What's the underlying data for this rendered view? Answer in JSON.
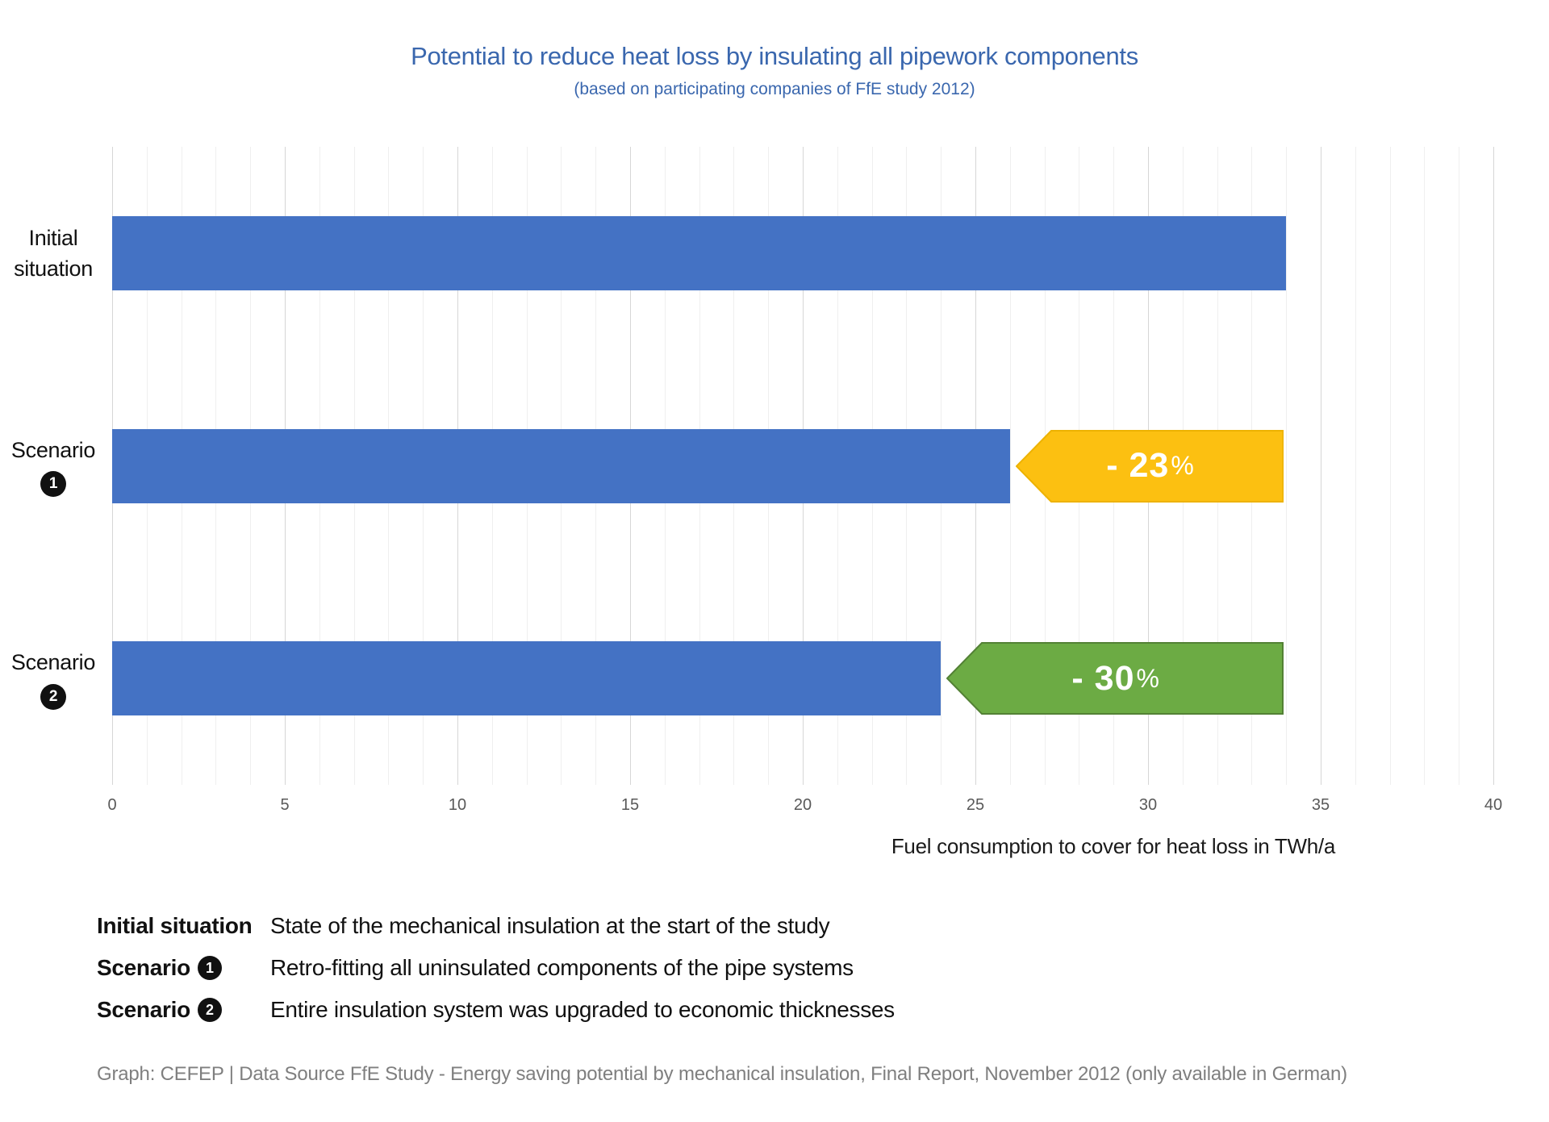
{
  "title": "Potential to reduce heat loss by insulating all pipework components",
  "subtitle": "(based on participating companies of FfE study 2012)",
  "colors": {
    "title_text": "#3A67AE",
    "bar_blue": "#4472C4",
    "arrow_yellow_fill": "#FCC011",
    "arrow_yellow_stroke": "#EDB200",
    "arrow_green_fill": "#6CAB44",
    "arrow_green_stroke": "#538135",
    "grid_minor": "#EFEFEF",
    "grid_major": "#D6D6D6",
    "tick_text": "#595959",
    "footer_text": "#7F7F7F"
  },
  "chart_data": {
    "type": "bar",
    "orientation": "horizontal",
    "title": "Potential to reduce heat loss by insulating all pipework components",
    "subtitle": "(based on participating companies of FfE study 2012)",
    "xlabel": "Fuel consumption to cover for heat loss in TWh/a",
    "xlim": [
      0,
      40
    ],
    "xticks": [
      0,
      5,
      10,
      15,
      20,
      25,
      30,
      35,
      40
    ],
    "grid": "vertical; minor every 1, major every 5",
    "categories": [
      "Initial situation",
      "Scenario 1",
      "Scenario 2"
    ],
    "values": [
      34,
      26,
      24
    ],
    "bars": [
      {
        "label_lines": [
          "Initial",
          "situation"
        ],
        "badge": null,
        "value": 34,
        "arrow": null
      },
      {
        "label_lines": [
          "Scenario"
        ],
        "badge": "1",
        "value": 26,
        "arrow": {
          "value_text": "- 23",
          "unit_text": "%",
          "fill": "#FCC011",
          "stroke": "#EDB200",
          "span_end": 34
        }
      },
      {
        "label_lines": [
          "Scenario"
        ],
        "badge": "2",
        "value": 24,
        "arrow": {
          "value_text": "- 30",
          "unit_text": "%",
          "fill": "#6CAB44",
          "stroke": "#538135",
          "span_end": 34
        }
      }
    ]
  },
  "axis": {
    "label": "Fuel consumption to cover for heat loss in TWh/a"
  },
  "legend": {
    "rows": [
      {
        "term": "Initial situation",
        "badge": null,
        "desc": "State of the mechanical insulation at the start of the study"
      },
      {
        "term": "Scenario",
        "badge": "1",
        "desc": "Retro-fitting all uninsulated components of the pipe systems"
      },
      {
        "term": "Scenario",
        "badge": "2",
        "desc": "Entire insulation system was upgraded to economic thicknesses"
      }
    ]
  },
  "footer": "Graph: CEFEP | Data Source FfE Study - Energy saving potential by mechanical insulation, Final Report, November 2012 (only available in German)"
}
